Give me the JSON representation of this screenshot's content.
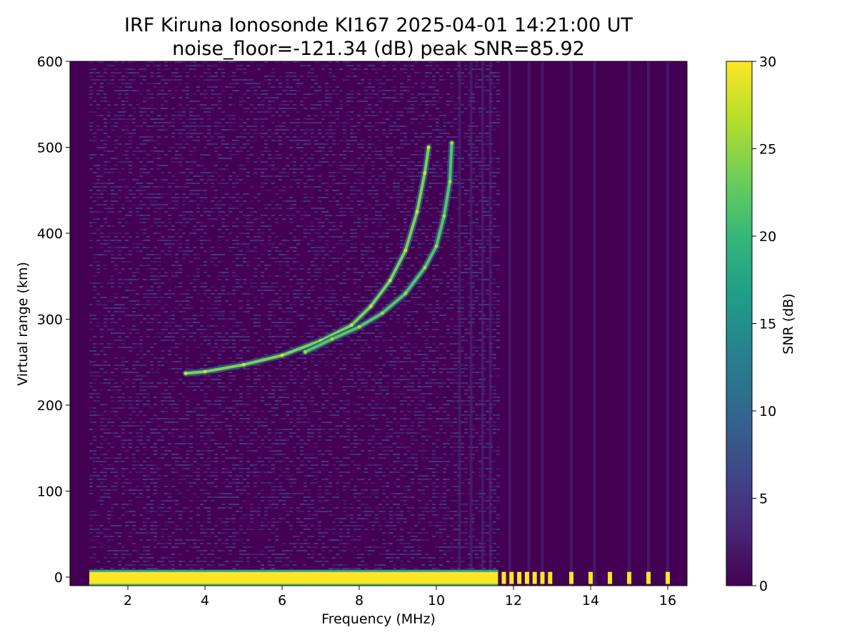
{
  "chart_data": {
    "type": "heatmap",
    "title": "IRF Kiruna Ionosonde KI167 2025-04-01 14:21:00  UT",
    "subtitle": "noise_floor=-121.34 (dB) peak SNR=85.92",
    "xlabel": "Frequency (MHz)",
    "ylabel": "Virtual range (km)",
    "xlim": [
      0.5,
      16.5
    ],
    "ylim": [
      -10,
      600
    ],
    "xticks": [
      2,
      4,
      6,
      8,
      10,
      12,
      14,
      16
    ],
    "yticks": [
      0,
      100,
      200,
      300,
      400,
      500,
      600
    ],
    "colorbar": {
      "label": "SNR (dB)",
      "range": [
        0,
        30
      ],
      "ticks": [
        0,
        5,
        10,
        15,
        20,
        25,
        30
      ],
      "colormap": "viridis",
      "colors": [
        "#440154",
        "#482878",
        "#3e4989",
        "#31688e",
        "#26828e",
        "#1f9e89",
        "#35b779",
        "#6ece58",
        "#b5de2b",
        "#fde725"
      ]
    },
    "data_start_mhz": 1.0,
    "data_end_mhz": 16.4,
    "continuous_sweep_end_mhz": 11.6,
    "ground_echo": {
      "range_km": [
        -8,
        6
      ],
      "snr_db": 30
    },
    "traces": [
      {
        "mode": "O",
        "points": [
          [
            3.5,
            237
          ],
          [
            4.0,
            239
          ],
          [
            5.0,
            247
          ],
          [
            6.0,
            258
          ],
          [
            7.0,
            275
          ],
          [
            7.8,
            293
          ],
          [
            8.3,
            315
          ],
          [
            8.8,
            345
          ],
          [
            9.2,
            380
          ],
          [
            9.5,
            425
          ],
          [
            9.7,
            470
          ],
          [
            9.8,
            500
          ]
        ],
        "snr_db": 24
      },
      {
        "mode": "X",
        "points": [
          [
            6.6,
            262
          ],
          [
            7.3,
            277
          ],
          [
            8.0,
            291
          ],
          [
            8.6,
            307
          ],
          [
            9.2,
            330
          ],
          [
            9.7,
            360
          ],
          [
            10.0,
            385
          ],
          [
            10.2,
            420
          ],
          [
            10.35,
            460
          ],
          [
            10.4,
            505
          ]
        ],
        "snr_db": 22
      }
    ],
    "vertical_streaks_mhz": [
      10.6,
      10.9,
      11.2,
      11.4,
      11.9,
      12.4,
      12.75,
      13.5,
      14.1,
      15.0,
      15.5,
      16.0
    ],
    "discrete_channels_mhz": [
      11.75,
      11.95,
      12.15,
      12.35,
      12.55,
      12.75,
      12.95,
      13.5,
      14.0,
      14.5,
      15.0,
      15.5,
      16.0
    ]
  }
}
